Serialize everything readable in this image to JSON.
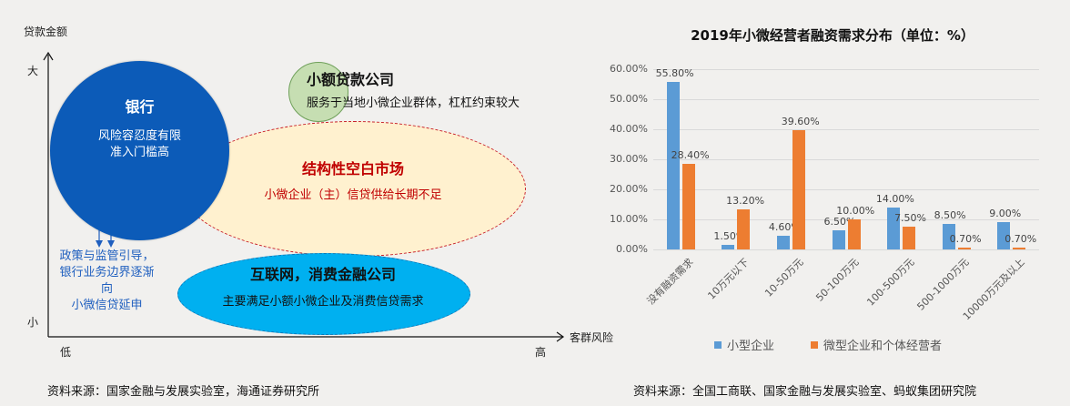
{
  "diagram": {
    "y_axis_title": "贷款金额",
    "y_high": "大",
    "y_low": "小",
    "x_axis_title": "客群风险",
    "x_low": "低",
    "x_high": "高",
    "bank": {
      "title": "银行",
      "desc_line1": "风险容忍度有限",
      "desc_line2": "准入门槛高",
      "color": "#0c5bb8"
    },
    "microloan": {
      "title": "小额贷款公司",
      "desc": "服务于当地小微企业群体，杠杠约束较大",
      "color": "#c6deb2"
    },
    "gap": {
      "title": "结构性空白市场",
      "desc": "小微企业（主）信贷供给长期不足",
      "color": "#fff1cf",
      "text_color": "#c00000"
    },
    "internet": {
      "title": "互联网，消费金融公司",
      "desc": "主要满足小额小微企业及消费信贷需求",
      "color": "#00b0f0"
    },
    "policy": {
      "line1": "政策与监管引导，",
      "line2": "银行业务边界逐渐向",
      "line3": "小微信贷延申",
      "color": "#1f5fbf"
    },
    "source": "资料来源：国家金融与发展实验室，海通证券研究所"
  },
  "chart_data": {
    "type": "bar",
    "title": "2019年小微经营者融资需求分布（单位：%）",
    "categories": [
      "没有融资需求",
      "10万元以下",
      "10-50万元",
      "50-100万元",
      "100-500万元",
      "500-1000万元",
      "10000万元及以上"
    ],
    "series": [
      {
        "name": "小型企业",
        "color": "#5b9bd5",
        "values": [
          55.8,
          1.5,
          4.6,
          6.5,
          14.0,
          8.5,
          9.0
        ],
        "labels": [
          "55.80%",
          "1.50%",
          "4.60%",
          "6.50%",
          "14.00%",
          "8.50%",
          "9.00%"
        ]
      },
      {
        "name": "微型企业和个体经营者",
        "color": "#ed7d31",
        "values": [
          28.4,
          13.2,
          39.6,
          10.0,
          7.5,
          0.7,
          0.7
        ],
        "labels": [
          "28.40%",
          "13.20%",
          "39.60%",
          "10.00%",
          "7.50%",
          "0.70%",
          "0.70%"
        ]
      }
    ],
    "yticks": [
      "0.00%",
      "10.00%",
      "20.00%",
      "30.00%",
      "40.00%",
      "50.00%",
      "60.00%"
    ],
    "ylim": [
      0,
      60
    ],
    "xlabel": "",
    "ylabel": "",
    "grid": true,
    "legend_position": "bottom"
  },
  "chart_source": "资料来源：全国工商联、国家金融与发展实验室、蚂蚁集团研究院"
}
